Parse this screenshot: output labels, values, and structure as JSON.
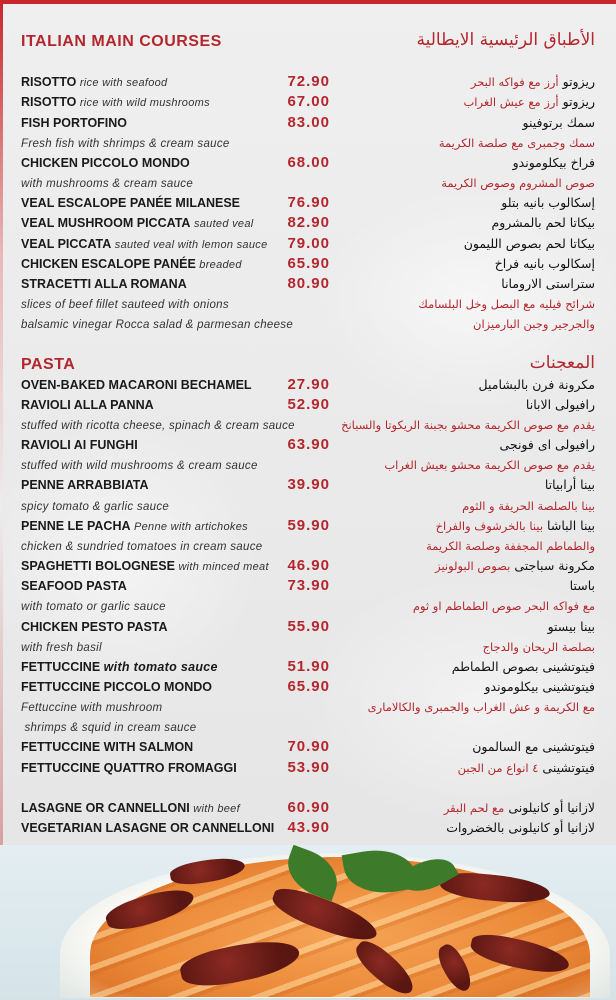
{
  "colors": {
    "accent": "#b3262d",
    "text": "#1a1a1a",
    "background": "#ececec"
  },
  "sections": [
    {
      "title_en": "ITALIAN MAIN COURSES",
      "title_ar": "الأطباق الرئيسية الايطالية",
      "rows": [
        {},
        {
          "name": "RISOTTO",
          "desc": "rice with seafood",
          "price": "72.90",
          "ar": "ريزوتو",
          "ar_red": "أرز مع فواكه البحر"
        },
        {
          "name": "RISOTTO",
          "desc": "rice with wild mushrooms",
          "price": "67.00",
          "ar": "ريزوتو",
          "ar_red": "أرز مع عيش الغراب"
        },
        {
          "name": "FISH PORTOFINO",
          "price": "83.00",
          "ar": "سمك برتوفينو"
        },
        {
          "desc": "Fresh fish with shrimps & cream sauce",
          "ar_red": "سمك وجمبرى مع صلصة الكريمة"
        },
        {
          "name": "CHICKEN PICCOLO MONDO",
          "price": "68.00",
          "ar": "فراخ بيكلوموندو"
        },
        {
          "desc": "with mushrooms & cream sauce",
          "ar_red": "صوص المشروم وصوص الكريمة"
        },
        {
          "name": "VEAL ESCALOPE PANÉE MILANESE",
          "price": "76.90",
          "ar": "إسكالوب بانيه بتلو"
        },
        {
          "name": "VEAL MUSHROOM PICCATA",
          "desc": "sauted veal",
          "price": "82.90",
          "ar": "بيكاتا لحم بالمشروم"
        },
        {
          "name": "VEAL PICCATA",
          "desc": "sauted veal with lemon sauce",
          "price": "79.00",
          "ar": "بيكاتا لحم بصوص الليمون"
        },
        {
          "name": "CHICKEN ESCALOPE PANÉE",
          "desc": "breaded",
          "price": "65.90",
          "ar": "إسكالوب بانيه فراخ"
        },
        {
          "name": "STRACETTI ALLA ROMANA",
          "price": "80.90",
          "ar": "ستراستى الارومانا"
        },
        {
          "desc": "slices of beef fillet sauteed with onions",
          "ar_red": "شرائح فيليه مع البصل وخل البلسامك"
        },
        {
          "desc": "balsamic vinegar Rocca salad & parmesan cheese",
          "ar_red": "والجرجير وجبن البارميزان"
        },
        {}
      ]
    },
    {
      "title_en": "PASTA",
      "title_ar": "المعجنات",
      "rows": [
        {
          "name": "OVEN-BAKED MACARONI BECHAMEL",
          "price": "27.90",
          "ar": "مكرونة فرن بالبشاميل"
        },
        {
          "name": "RAVIOLI ALLA PANNA",
          "price": "52.90",
          "ar": "رافيولى الابانا"
        },
        {
          "desc": "stuffed with ricotta cheese, spinach & cream sauce",
          "ar_red": "يقدم مع صوص الكريمة محشو بجبنة الريكوتا والسبانخ"
        },
        {
          "name": "RAVIOLI AI FUNGHI",
          "price": "63.90",
          "ar": "رافيولى اى فونجى"
        },
        {
          "desc": "stuffed with wild mushrooms & cream sauce",
          "ar_red": "يقدم مع صوص الكريمة محشو بعيش الغراب"
        },
        {
          "name": "PENNE ARRABBIATA",
          "price": "39.90",
          "ar": "بينا أرابياتا"
        },
        {
          "desc": "spicy tomato & garlic sauce",
          "ar_red": "بينا بالصلصة الحريفة و الثوم"
        },
        {
          "name": "PENNE LE PACHA",
          "desc": "Penne with artichokes",
          "price": "59.90",
          "ar": "بينا الباشا",
          "ar_red": "بينا بالخرشوف والفراخ"
        },
        {
          "desc": "chicken & sundried tomatoes in cream sauce",
          "ar_red": "والطماطم المجففة وصلصة الكريمة"
        },
        {
          "name": "SPAGHETTI BOLOGNESE",
          "desc": "with minced meat",
          "price": "46.90",
          "ar": "مكرونة سباجتى",
          "ar_red": "بصوص البولونيز"
        },
        {
          "name": "SEAFOOD PASTA",
          "price": "73.90",
          "ar": "باستا"
        },
        {
          "desc": "with tomato or garlic sauce",
          "ar_red": "مع فواكه البحر  صوص الطماطم او ثوم"
        },
        {
          "name": "CHICKEN PESTO PASTA",
          "price": "55.90",
          "ar": "بينا بيستو"
        },
        {
          "desc": "with fresh basil",
          "ar_red": "بصلصة الريحان والدجاج"
        },
        {
          "name": "FETTUCCINE",
          "desc": "with tomato sauce",
          "desc_bold": true,
          "price": "51.90",
          "ar": "فيتوتشينى بصوص الطماطم"
        },
        {
          "name": "FETTUCCINE PICCOLO MONDO",
          "price": "65.90",
          "ar": "فيتوتشينى بيكلوموندو"
        },
        {
          "desc": "Fettuccine with mushroom",
          "ar_red": "مع الكريمة و عش الغراب والجمبرى والكالامارى"
        },
        {
          "desc": " shrimps & squid in cream sauce"
        },
        {
          "name": "FETTUCCINE WITH SALMON",
          "price": "70.90",
          "ar": "فيتوتشينى مع السالمون"
        },
        {
          "name": "FETTUCCINE QUATTRO FROMAGGI",
          "price": "53.90",
          "ar": "فيتوتشينى",
          "ar_red": "٤ انواع من الجبن"
        },
        {},
        {
          "name": "LASAGNE OR CANNELLONI",
          "desc": "with beef",
          "price": "60.90",
          "ar": "لازانيا  أو كانيلونى",
          "ar_red": "مع لحم البقر"
        },
        {
          "name": "VEGETARIAN LASAGNE OR CANNELLONI",
          "price": "43.90",
          "ar": "لازانيا أو كانيلونى بالخضروات"
        }
      ]
    }
  ],
  "photo": {
    "subject": "penne-pasta-with-sundried-tomatoes"
  }
}
